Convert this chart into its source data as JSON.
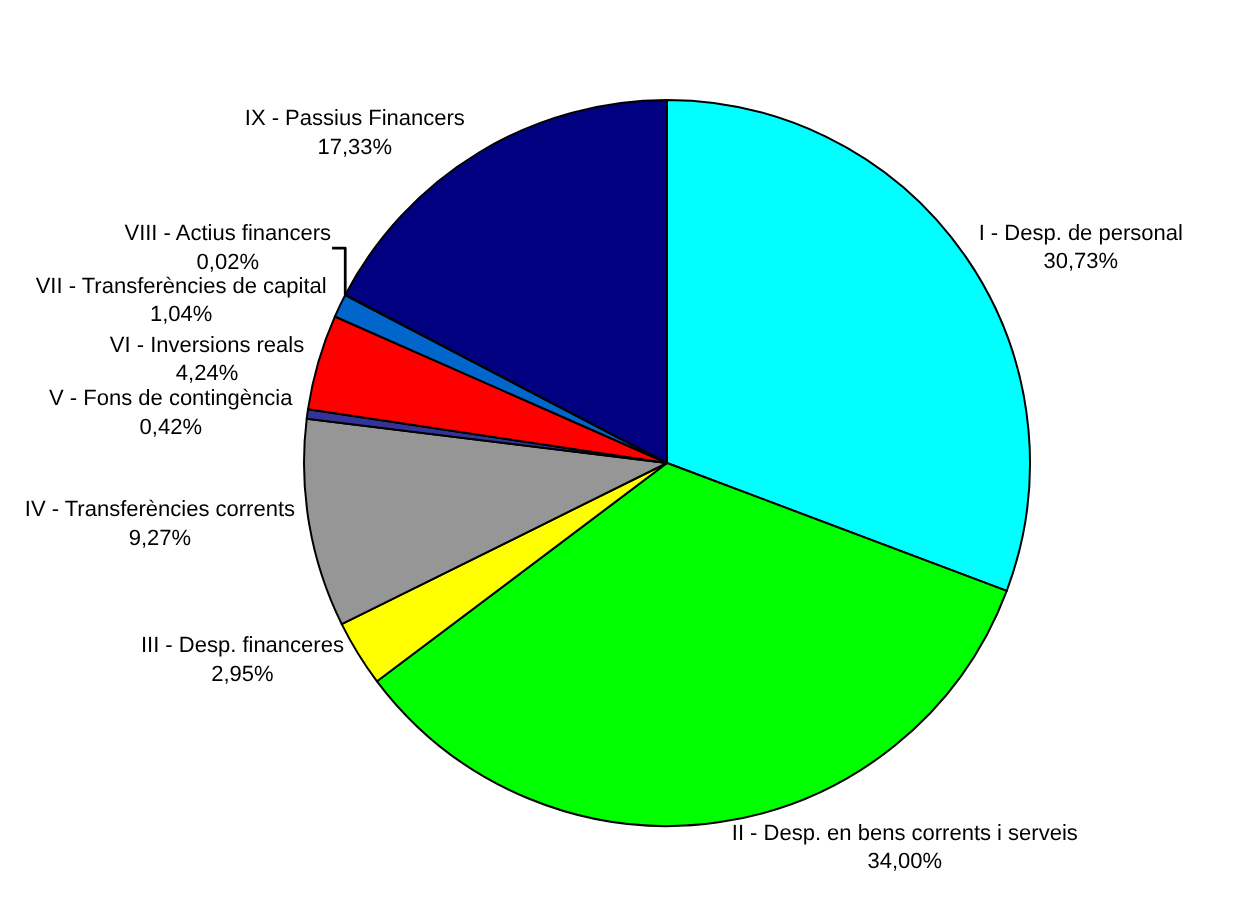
{
  "chart_data": {
    "type": "pie",
    "categories": [
      "I - Desp. de personal",
      "II - Desp. en bens corrents i serveis",
      "III - Desp. financeres",
      "IV - Transferències corrents",
      "V - Fons de contingència",
      "VI - Inversions reals",
      "VII - Transferències de capital",
      "VIII - Actius financers",
      "IX - Passius Financers"
    ],
    "values": [
      30.73,
      34.0,
      2.95,
      9.27,
      0.42,
      4.24,
      1.04,
      0.02,
      17.33
    ],
    "value_labels": [
      "30,73%",
      "34,00%",
      "2,95%",
      "9,27%",
      "0,42%",
      "4,24%",
      "1,04%",
      "0,02%",
      "17,33%"
    ],
    "colors": [
      "#00ffff",
      "#00ff00",
      "#ffff00",
      "#969696",
      "#333399",
      "#ff0000",
      "#0066cc",
      "#339966",
      "#000080"
    ],
    "legend": false
  }
}
